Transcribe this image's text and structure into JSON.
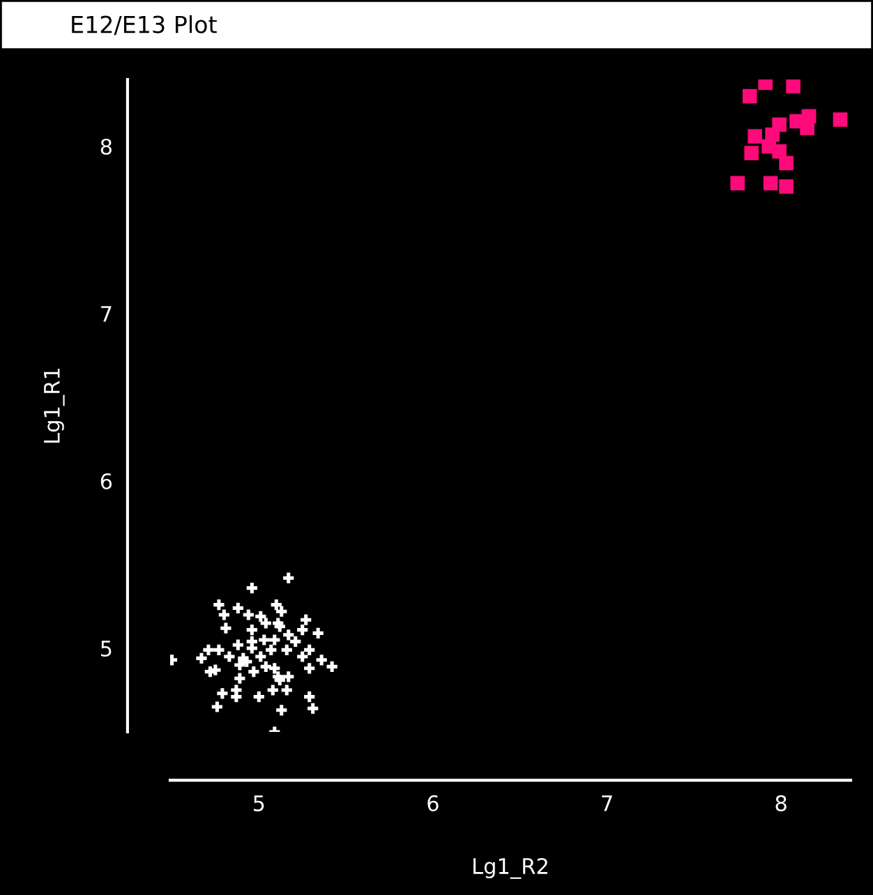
{
  "chart_data": {
    "type": "scatter",
    "title": "E12/E13 Plot",
    "xlabel": "Lg1_R2",
    "ylabel": "Lg1_R1",
    "xlim": [
      4.49,
      8.4
    ],
    "ylim": [
      4.5,
      8.4
    ],
    "xticks": [
      5,
      6,
      7,
      8
    ],
    "yticks": [
      5,
      6,
      7,
      8
    ],
    "grid": false,
    "legend": false,
    "series": [
      {
        "color": "#ffffff",
        "marker": "cross",
        "x": [
          5.17,
          4.96,
          4.77,
          4.88,
          4.8,
          4.94,
          5.1,
          5.13,
          5.01,
          5.04,
          5.11,
          5.27,
          4.81,
          4.96,
          5.12,
          5.17,
          5.25,
          5.34,
          4.88,
          4.96,
          5.03,
          5.09,
          5.21,
          4.71,
          4.77,
          4.96,
          5.07,
          5.16,
          5.29,
          4.5,
          4.67,
          4.83,
          4.91,
          5.01,
          5.25,
          5.36,
          4.89,
          5.04,
          5.09,
          4.75,
          4.97,
          5.29,
          5.42,
          5.11,
          5.17,
          4.89,
          4.79,
          4.87,
          5.0,
          5.08,
          5.16,
          5.29,
          4.87,
          4.76,
          5.13,
          5.31,
          5.09,
          4.72,
          5.12,
          4.93
        ],
        "values": [
          5.42,
          5.36,
          5.26,
          5.24,
          5.2,
          5.2,
          5.26,
          5.22,
          5.19,
          5.15,
          5.15,
          5.17,
          5.12,
          5.11,
          5.13,
          5.08,
          5.11,
          5.09,
          5.02,
          5.04,
          5.05,
          5.05,
          5.04,
          4.99,
          4.99,
          5.0,
          4.99,
          4.99,
          4.99,
          4.93,
          4.94,
          4.95,
          4.94,
          4.95,
          4.95,
          4.93,
          4.9,
          4.89,
          4.88,
          4.87,
          4.86,
          4.88,
          4.89,
          4.83,
          4.83,
          4.82,
          4.73,
          4.75,
          4.71,
          4.75,
          4.75,
          4.71,
          4.71,
          4.65,
          4.63,
          4.64,
          4.5,
          4.86,
          4.81,
          4.92
        ]
      },
      {
        "color": "#ff0a7a",
        "marker": "square",
        "x": [
          7.82,
          7.91,
          8.07,
          8.34,
          8.16,
          8.09,
          7.99,
          7.85,
          7.95,
          7.93,
          7.83,
          7.99,
          8.03,
          7.75,
          7.94,
          8.03,
          8.15
        ],
        "values": [
          8.3,
          8.38,
          8.36,
          8.16,
          8.18,
          8.15,
          8.13,
          8.06,
          8.07,
          8.0,
          7.96,
          7.97,
          7.9,
          7.78,
          7.78,
          7.76,
          8.11
        ]
      }
    ]
  }
}
